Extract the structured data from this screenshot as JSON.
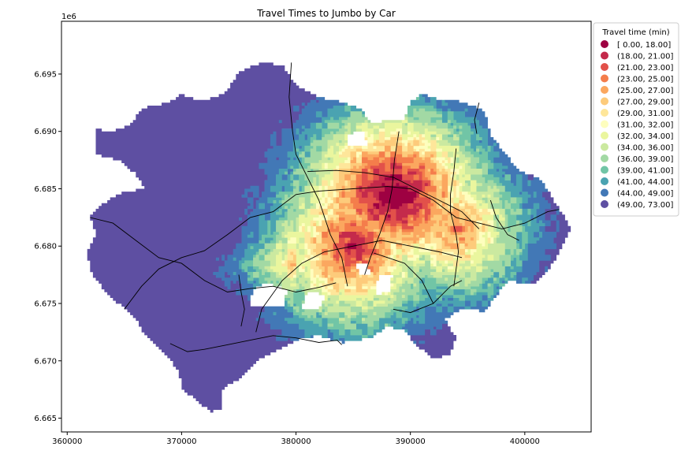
{
  "chart_data": {
    "type": "heatmap",
    "title": "Travel Times to Jumbo by Car",
    "xlabel": "",
    "ylabel": "",
    "x_offset_label": "",
    "y_offset_label": "1e6",
    "xlim": [
      359500,
      405800
    ],
    "ylim": [
      6663800,
      6699600
    ],
    "x_ticks": [
      360000,
      370000,
      380000,
      390000,
      400000
    ],
    "x_tick_labels": [
      "360000",
      "370000",
      "380000",
      "390000",
      "400000"
    ],
    "y_ticks": [
      6665000,
      6670000,
      6675000,
      6680000,
      6685000,
      6690000,
      6695000
    ],
    "y_tick_labels": [
      "6.665",
      "6.670",
      "6.675",
      "6.680",
      "6.685",
      "6.690",
      "6.695"
    ],
    "legend": {
      "title": "Travel time (min)",
      "placement": "outside-top-right",
      "entries": [
        {
          "label": "[ 0.00, 18.00]",
          "color": "#9e0142"
        },
        {
          "label": "(18.00, 21.00]",
          "color": "#c42a4b"
        },
        {
          "label": "(21.00, 23.00]",
          "color": "#e2514a"
        },
        {
          "label": "(23.00, 25.00]",
          "color": "#f47d4b"
        },
        {
          "label": "(25.00, 27.00]",
          "color": "#fba75f"
        },
        {
          "label": "(27.00, 29.00]",
          "color": "#fdcb7b"
        },
        {
          "label": "(29.00, 31.00]",
          "color": "#fee69a"
        },
        {
          "label": "(31.00, 32.00]",
          "color": "#fefebe"
        },
        {
          "label": "(32.00, 34.00]",
          "color": "#eaf69e"
        },
        {
          "label": "(34.00, 36.00]",
          "color": "#cbe9a0"
        },
        {
          "label": "(36.00, 39.00]",
          "color": "#a2d9a4"
        },
        {
          "label": "(39.00, 41.00]",
          "color": "#71c5a6"
        },
        {
          "label": "(41.00, 44.00]",
          "color": "#4aa3b1"
        },
        {
          "label": "(44.00, 49.00]",
          "color": "#4278b6"
        },
        {
          "label": "(49.00, 73.00]",
          "color": "#5e4fa2"
        }
      ]
    },
    "roads_color": "#000000",
    "grid": false
  }
}
